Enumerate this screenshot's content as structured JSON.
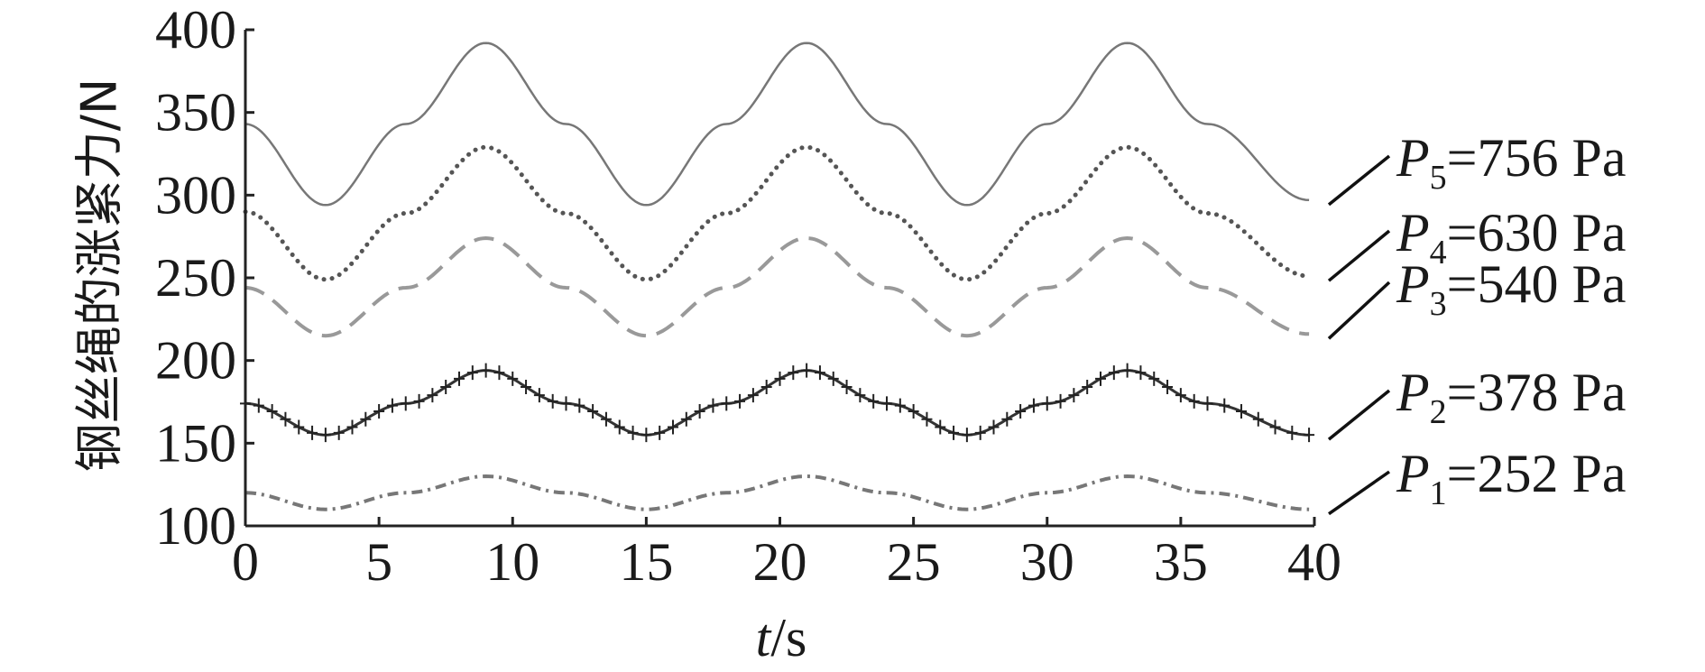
{
  "chart_data": {
    "type": "line",
    "xlabel": {
      "var": "t",
      "unit": "/s"
    },
    "ylabel": "钢丝绳的涨紧力/N",
    "xlim": [
      0,
      40
    ],
    "ylim": [
      100,
      400
    ],
    "x_ticks": [
      0,
      5,
      10,
      15,
      20,
      25,
      30,
      35,
      40
    ],
    "y_ticks": [
      100,
      150,
      200,
      250,
      300,
      350,
      400
    ],
    "grid": false,
    "legend": "right, labels at line ends",
    "series": [
      {
        "name": "P5=756 Pa",
        "var": "P",
        "sub": "5",
        "value": "=756 Pa",
        "style": "solid",
        "color": "#777777",
        "x": [
          0,
          3,
          6,
          9,
          12,
          15,
          18,
          21,
          24,
          27,
          30,
          33,
          36,
          39.8
        ],
        "y": [
          343,
          294,
          343,
          392,
          343,
          294,
          343,
          392,
          343,
          294,
          343,
          392,
          343,
          297
        ]
      },
      {
        "name": "P4=630 Pa",
        "var": "P",
        "sub": "4",
        "value": "=630 Pa",
        "style": "dotted",
        "color": "#555555",
        "x": [
          0,
          3,
          6,
          9,
          12,
          15,
          18,
          21,
          24,
          27,
          30,
          33,
          36,
          39.8
        ],
        "y": [
          290,
          249,
          289,
          329,
          289,
          249,
          289,
          329,
          289,
          249,
          289,
          329,
          289,
          251
        ]
      },
      {
        "name": "P3=540 Pa",
        "var": "P",
        "sub": "3",
        "value": "=540 Pa",
        "style": "dashed",
        "color": "#999999",
        "x": [
          0,
          3,
          6,
          9,
          12,
          15,
          18,
          21,
          24,
          27,
          30,
          33,
          36,
          39.8
        ],
        "y": [
          244,
          215,
          244,
          274,
          244,
          215,
          244,
          274,
          244,
          215,
          244,
          274,
          244,
          216
        ]
      },
      {
        "name": "P2=378 Pa",
        "var": "P",
        "sub": "2",
        "value": "=378 Pa",
        "style": "plus-markers",
        "color": "#333333",
        "x": [
          0,
          3,
          6,
          9,
          12,
          15,
          18,
          21,
          24,
          27,
          30,
          33,
          36,
          39.8
        ],
        "y": [
          174,
          155,
          174,
          194,
          174,
          155,
          174,
          194,
          174,
          155,
          174,
          194,
          174,
          155
        ]
      },
      {
        "name": "P1=252 Pa",
        "var": "P",
        "sub": "1",
        "value": "=252 Pa",
        "style": "dash-dot",
        "color": "#777777",
        "x": [
          0,
          3,
          6,
          9,
          12,
          15,
          18,
          21,
          24,
          27,
          30,
          33,
          36,
          39.8
        ],
        "y": [
          120,
          110,
          120,
          130,
          120,
          110,
          120,
          130,
          120,
          110,
          120,
          130,
          120,
          110
        ]
      }
    ]
  }
}
